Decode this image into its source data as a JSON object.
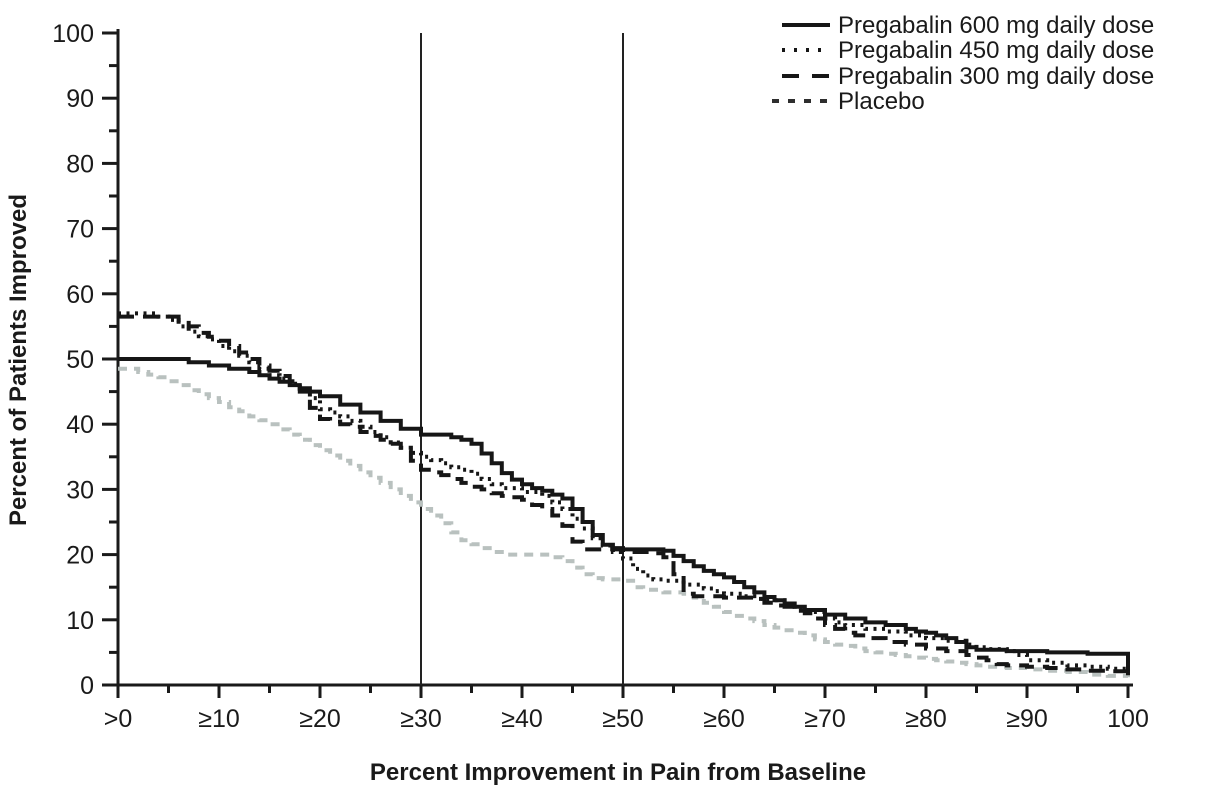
{
  "figure": {
    "background": "#ffffff",
    "text_color": "#1a1a1a",
    "axis_color": "#1a1a1a"
  },
  "chart_data": {
    "type": "line",
    "subtype": "step-after",
    "title": "",
    "xlabel": "Percent Improvement in Pain from Baseline",
    "ylabel": "Percent of Patients Improved",
    "xlim": [
      0,
      100
    ],
    "ylim": [
      0,
      100
    ],
    "grid": "off",
    "legend_position": "top-right",
    "reference_lines_x": [
      30,
      50
    ],
    "x_ticks": {
      "values": [
        0,
        10,
        20,
        30,
        40,
        50,
        60,
        70,
        80,
        90,
        100
      ],
      "labels": [
        ">0",
        "≥10",
        "≥20",
        "≥30",
        "≥40",
        "≥50",
        "≥60",
        "≥70",
        "≥80",
        "≥90",
        "100"
      ],
      "minor_every": 5
    },
    "y_ticks": {
      "values": [
        0,
        10,
        20,
        30,
        40,
        50,
        60,
        70,
        80,
        90,
        100
      ],
      "labels": [
        "0",
        "10",
        "20",
        "30",
        "40",
        "50",
        "60",
        "70",
        "80",
        "90",
        "100"
      ],
      "minor_every": 5
    },
    "series": [
      {
        "name": "Pregabalin 600 mg daily dose",
        "style": "solid",
        "color": "#161616",
        "dash": "",
        "legend_dash": "",
        "points": [
          [
            0,
            50
          ],
          [
            6,
            50
          ],
          [
            7,
            49.5
          ],
          [
            9,
            49
          ],
          [
            11,
            48.5
          ],
          [
            13,
            48
          ],
          [
            14,
            47.5
          ],
          [
            15,
            47
          ],
          [
            16,
            46.5
          ],
          [
            17,
            46
          ],
          [
            18,
            45.5
          ],
          [
            19,
            45
          ],
          [
            20,
            44.3
          ],
          [
            22,
            43
          ],
          [
            24,
            41.8
          ],
          [
            26,
            40.5
          ],
          [
            28,
            39.3
          ],
          [
            30,
            38.4
          ],
          [
            33,
            38
          ],
          [
            34,
            37.6
          ],
          [
            35,
            37
          ],
          [
            36,
            35.5
          ],
          [
            37,
            34
          ],
          [
            38,
            32.5
          ],
          [
            39,
            31.5
          ],
          [
            40,
            30.8
          ],
          [
            41,
            30.2
          ],
          [
            42,
            29.8
          ],
          [
            43,
            29.2
          ],
          [
            44,
            28.6
          ],
          [
            45,
            27
          ],
          [
            46,
            25
          ],
          [
            47,
            23
          ],
          [
            48,
            21.5
          ],
          [
            49,
            21
          ],
          [
            50,
            20.8
          ],
          [
            54,
            20.6
          ],
          [
            55,
            19.8
          ],
          [
            56,
            19
          ],
          [
            57,
            18.2
          ],
          [
            58,
            17.5
          ],
          [
            59,
            17
          ],
          [
            60,
            16.5
          ],
          [
            61,
            15.8
          ],
          [
            62,
            15
          ],
          [
            63,
            14.2
          ],
          [
            64,
            13.5
          ],
          [
            65,
            13
          ],
          [
            66,
            12.5
          ],
          [
            67,
            12
          ],
          [
            68,
            11.5
          ],
          [
            70,
            10.8
          ],
          [
            72,
            10.2
          ],
          [
            74,
            9.6
          ],
          [
            76,
            9.2
          ],
          [
            78,
            8.6
          ],
          [
            79,
            8.2
          ],
          [
            80,
            8
          ],
          [
            81,
            7.6
          ],
          [
            82,
            7.2
          ],
          [
            83,
            6.6
          ],
          [
            84,
            5.8
          ],
          [
            85,
            5.4
          ],
          [
            88,
            5.2
          ],
          [
            92,
            5
          ],
          [
            96,
            4.8
          ],
          [
            100,
            4.6
          ],
          [
            100,
            1.5
          ]
        ]
      },
      {
        "name": "Pregabalin 450 mg daily dose",
        "style": "dotted",
        "color": "#161616",
        "dash": "3 5.5",
        "legend_dash": "3 9",
        "points": [
          [
            0,
            57
          ],
          [
            3,
            57
          ],
          [
            4,
            56.5
          ],
          [
            5,
            56
          ],
          [
            6,
            55
          ],
          [
            7,
            54.2
          ],
          [
            8,
            53.5
          ],
          [
            9,
            53
          ],
          [
            10,
            52
          ],
          [
            11,
            51.2
          ],
          [
            12,
            50.5
          ],
          [
            13,
            49.5
          ],
          [
            14,
            48.5
          ],
          [
            15,
            47.5
          ],
          [
            16,
            47
          ],
          [
            17,
            46.2
          ],
          [
            18,
            45.4
          ],
          [
            19,
            44
          ],
          [
            20,
            42.3
          ],
          [
            21,
            41.8
          ],
          [
            22,
            41.2
          ],
          [
            23,
            40.5
          ],
          [
            24,
            39.6
          ],
          [
            25,
            38.8
          ],
          [
            26,
            38
          ],
          [
            27,
            37.2
          ],
          [
            28,
            36.4
          ],
          [
            29,
            35.6
          ],
          [
            30,
            35
          ],
          [
            31,
            34.5
          ],
          [
            32,
            34
          ],
          [
            33,
            33.4
          ],
          [
            34,
            33
          ],
          [
            35,
            32.4
          ],
          [
            36,
            31.6
          ],
          [
            37,
            30.8
          ],
          [
            38,
            30.2
          ],
          [
            40,
            29.6
          ],
          [
            42,
            29
          ],
          [
            43,
            28
          ],
          [
            44,
            27
          ],
          [
            45,
            25.5
          ],
          [
            46,
            24
          ],
          [
            47,
            22.5
          ],
          [
            48,
            21.4
          ],
          [
            49,
            20.4
          ],
          [
            50,
            19.4
          ],
          [
            51,
            17.8
          ],
          [
            52,
            16.8
          ],
          [
            53,
            16.2
          ],
          [
            54,
            16
          ],
          [
            56,
            15.4
          ],
          [
            58,
            14.8
          ],
          [
            59,
            14.4
          ],
          [
            60,
            14
          ],
          [
            62,
            13.6
          ],
          [
            63,
            13.2
          ],
          [
            64,
            13
          ],
          [
            66,
            12.2
          ],
          [
            67,
            11.6
          ],
          [
            68,
            11.2
          ],
          [
            70,
            10.2
          ],
          [
            71,
            9.6
          ],
          [
            72,
            9.2
          ],
          [
            74,
            8.6
          ],
          [
            76,
            8.2
          ],
          [
            78,
            7.6
          ],
          [
            80,
            7.2
          ],
          [
            82,
            6.8
          ],
          [
            84,
            6.2
          ],
          [
            85,
            5.8
          ],
          [
            86,
            5.5
          ],
          [
            88,
            5.2
          ],
          [
            89,
            4.6
          ],
          [
            90,
            3.8
          ],
          [
            92,
            3.4
          ],
          [
            94,
            3
          ],
          [
            96,
            2.8
          ],
          [
            98,
            2.5
          ],
          [
            100,
            2.2
          ]
        ]
      },
      {
        "name": "Pregabalin 300 mg daily dose",
        "style": "dashed",
        "color": "#161616",
        "dash": "16 9",
        "legend_dash": "17 13",
        "points": [
          [
            0,
            56.5
          ],
          [
            5,
            56.5
          ],
          [
            6,
            56
          ],
          [
            7,
            55
          ],
          [
            8,
            54
          ],
          [
            9,
            53.4
          ],
          [
            10,
            52.8
          ],
          [
            11,
            52
          ],
          [
            12,
            51
          ],
          [
            13,
            50
          ],
          [
            14,
            49
          ],
          [
            15,
            48.2
          ],
          [
            16,
            47.4
          ],
          [
            17,
            46.6
          ],
          [
            18,
            45
          ],
          [
            19,
            42.5
          ],
          [
            20,
            40.8
          ],
          [
            21,
            40.4
          ],
          [
            22,
            40
          ],
          [
            23,
            39.6
          ],
          [
            24,
            38.8
          ],
          [
            25,
            38.2
          ],
          [
            26,
            37.6
          ],
          [
            27,
            37
          ],
          [
            28,
            36
          ],
          [
            29,
            34.4
          ],
          [
            30,
            33
          ],
          [
            31,
            32.6
          ],
          [
            32,
            32.2
          ],
          [
            33,
            31.6
          ],
          [
            34,
            31
          ],
          [
            35,
            30.4
          ],
          [
            36,
            30
          ],
          [
            37,
            29.4
          ],
          [
            38,
            29
          ],
          [
            39,
            28.8
          ],
          [
            40,
            28.4
          ],
          [
            41,
            27.6
          ],
          [
            42,
            27
          ],
          [
            43,
            26
          ],
          [
            44,
            24.4
          ],
          [
            45,
            22
          ],
          [
            46,
            20.8
          ],
          [
            50,
            20.4
          ],
          [
            53,
            20.2
          ],
          [
            54,
            19.6
          ],
          [
            55,
            17
          ],
          [
            56,
            14
          ],
          [
            57,
            13.6
          ],
          [
            60,
            13.4
          ],
          [
            63,
            13.2
          ],
          [
            64,
            12.6
          ],
          [
            65,
            12.2
          ],
          [
            66,
            12
          ],
          [
            67,
            11.4
          ],
          [
            68,
            11
          ],
          [
            69,
            10.2
          ],
          [
            70,
            9.2
          ],
          [
            71,
            8.6
          ],
          [
            72,
            8
          ],
          [
            73,
            7.6
          ],
          [
            74,
            7.2
          ],
          [
            76,
            6.6
          ],
          [
            78,
            6.2
          ],
          [
            80,
            5.6
          ],
          [
            82,
            5.2
          ],
          [
            84,
            4.6
          ],
          [
            85,
            4.2
          ],
          [
            86,
            3.8
          ],
          [
            87,
            3.2
          ],
          [
            88,
            3
          ],
          [
            90,
            2.8
          ],
          [
            92,
            2.6
          ],
          [
            94,
            2.4
          ],
          [
            96,
            2.2
          ],
          [
            98,
            2.1
          ],
          [
            100,
            2
          ]
        ]
      },
      {
        "name": "Placebo",
        "style": "short-dashed",
        "color": "#b9c1bf",
        "legend_color": "#2e2e2e",
        "dash": "9 7",
        "legend_dash": "7 9",
        "points": [
          [
            0,
            48.5
          ],
          [
            2,
            48
          ],
          [
            3,
            47.6
          ],
          [
            4,
            47.2
          ],
          [
            5,
            46.6
          ],
          [
            6,
            46
          ],
          [
            7,
            45.2
          ],
          [
            8,
            44.6
          ],
          [
            9,
            44
          ],
          [
            10,
            43.4
          ],
          [
            11,
            42.6
          ],
          [
            12,
            42
          ],
          [
            13,
            41.2
          ],
          [
            14,
            40.6
          ],
          [
            15,
            40
          ],
          [
            16,
            39.2
          ],
          [
            17,
            38.4
          ],
          [
            18,
            37.6
          ],
          [
            19,
            36.8
          ],
          [
            20,
            36
          ],
          [
            21,
            35.2
          ],
          [
            22,
            34.4
          ],
          [
            23,
            33.6
          ],
          [
            24,
            32.6
          ],
          [
            25,
            31.8
          ],
          [
            26,
            31
          ],
          [
            27,
            30
          ],
          [
            28,
            29
          ],
          [
            29,
            28
          ],
          [
            30,
            27
          ],
          [
            31,
            26
          ],
          [
            32,
            24.8
          ],
          [
            33,
            23.4
          ],
          [
            34,
            22.2
          ],
          [
            35,
            21.6
          ],
          [
            36,
            21
          ],
          [
            37,
            20.4
          ],
          [
            38,
            20
          ],
          [
            43,
            19.6
          ],
          [
            44,
            19
          ],
          [
            45,
            18
          ],
          [
            46,
            17
          ],
          [
            47,
            16.4
          ],
          [
            48,
            16.2
          ],
          [
            50,
            16
          ],
          [
            51,
            15
          ],
          [
            52,
            14.6
          ],
          [
            54,
            14.2
          ],
          [
            56,
            14
          ],
          [
            57,
            13.4
          ],
          [
            58,
            12.6
          ],
          [
            59,
            12
          ],
          [
            60,
            11.2
          ],
          [
            61,
            10.6
          ],
          [
            62,
            10.2
          ],
          [
            63,
            9.8
          ],
          [
            64,
            9.2
          ],
          [
            65,
            8.8
          ],
          [
            66,
            8.4
          ],
          [
            67,
            8
          ],
          [
            68,
            7.6
          ],
          [
            69,
            7
          ],
          [
            70,
            6.6
          ],
          [
            71,
            6.2
          ],
          [
            72,
            6
          ],
          [
            73,
            5.6
          ],
          [
            74,
            5.2
          ],
          [
            75,
            5
          ],
          [
            76,
            4.8
          ],
          [
            77,
            4.6
          ],
          [
            78,
            4.4
          ],
          [
            79,
            4.2
          ],
          [
            80,
            4
          ],
          [
            81,
            3.8
          ],
          [
            82,
            3.6
          ],
          [
            83,
            3.4
          ],
          [
            84,
            3.2
          ],
          [
            85,
            3
          ],
          [
            86,
            2.8
          ],
          [
            88,
            2.6
          ],
          [
            90,
            2.4
          ],
          [
            92,
            2.2
          ],
          [
            94,
            2
          ],
          [
            96,
            1.6
          ],
          [
            98,
            1.4
          ],
          [
            100,
            1.2
          ]
        ]
      }
    ]
  }
}
